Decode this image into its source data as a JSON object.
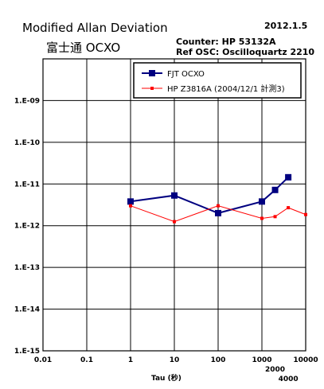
{
  "header": {
    "title": "Modified Allan Deviation",
    "subtitle": "富士通 OCXO",
    "date": "2012.1.5",
    "counter": "Counter:  HP 53132A",
    "ref_osc": "Ref OSC: Oscilloquartz 2210"
  },
  "chart_data": {
    "type": "line",
    "title": "Modified Allan Deviation",
    "subtitle": "富士通 OCXO",
    "xlabel": "Tau (秒)",
    "ylabel": "",
    "x_scale": "log",
    "y_scale": "log",
    "xlim": [
      0.01,
      10000
    ],
    "ylim": [
      1e-15,
      1e-08
    ],
    "grid": true,
    "legend_position": "top-right",
    "x_tick_labels": [
      "0.01",
      "0.1",
      "1",
      "10",
      "100",
      "1000",
      "10000"
    ],
    "x_extra_tick_labels": [
      "2000",
      "4000"
    ],
    "y_tick_labels": [
      "1.E-15",
      "1.E-14",
      "1.E-13",
      "1.E-12",
      "1.E-11",
      "1.E-10",
      "1.E-09"
    ],
    "series": [
      {
        "name": "FJT OCXO",
        "color": "#000080",
        "marker": "square",
        "x": [
          1,
          10,
          100,
          1000,
          2000,
          4000
        ],
        "y": [
          3.8e-12,
          5.3e-12,
          2e-12,
          3.8e-12,
          7.2e-12,
          1.45e-11
        ]
      },
      {
        "name": "HP Z3816A (2004/12/1 計測3)",
        "color": "#ff0000",
        "marker": "square",
        "x": [
          1,
          10,
          100,
          1000,
          2000,
          4000,
          10000
        ],
        "y": [
          3e-12,
          1.25e-12,
          3e-12,
          1.5e-12,
          1.65e-12,
          2.7e-12,
          1.85e-12
        ]
      }
    ]
  }
}
